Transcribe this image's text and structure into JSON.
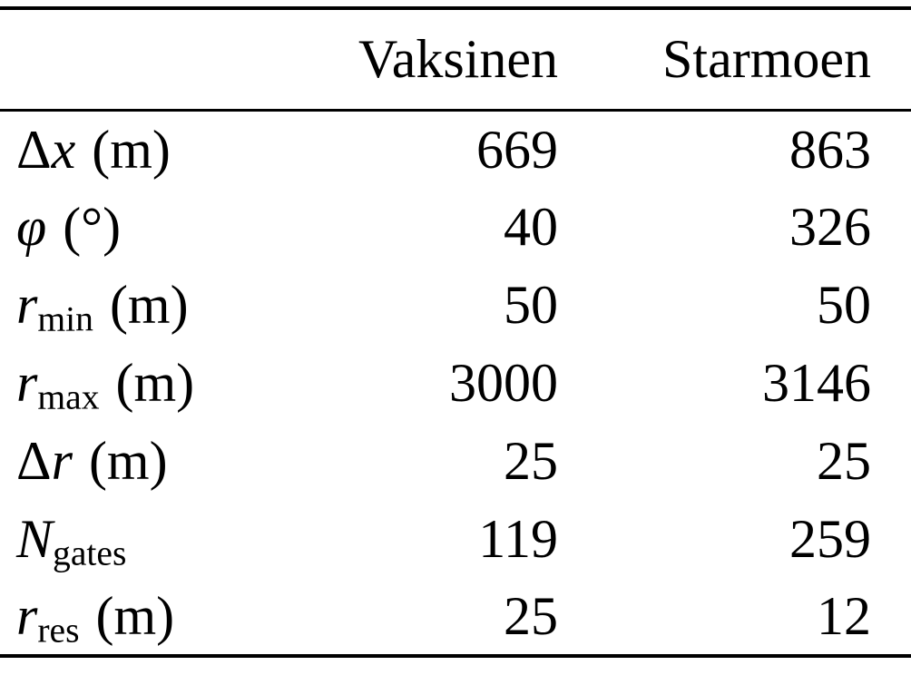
{
  "table": {
    "columns": [
      "Vaksinen",
      "Starmoen"
    ],
    "rows": [
      {
        "pre": "Δ",
        "sym": "x",
        "sub": "",
        "unit": "(m)",
        "vaksinen": "669",
        "starmoen": "863"
      },
      {
        "pre": "",
        "sym": "φ",
        "sub": "",
        "unit": "(°)",
        "vaksinen": "40",
        "starmoen": "326"
      },
      {
        "pre": "",
        "sym": "r",
        "sub": "min",
        "unit": "(m)",
        "vaksinen": "50",
        "starmoen": "50"
      },
      {
        "pre": "",
        "sym": "r",
        "sub": "max",
        "unit": "(m)",
        "vaksinen": "3000",
        "starmoen": "3146"
      },
      {
        "pre": "Δ",
        "sym": "r",
        "sub": "",
        "unit": "(m)",
        "vaksinen": "25",
        "starmoen": "25"
      },
      {
        "pre": "",
        "sym": "N",
        "sub": "gates",
        "unit": "",
        "vaksinen": "119",
        "starmoen": "259"
      },
      {
        "pre": "",
        "sym": "r",
        "sub": "res",
        "unit": "(m)",
        "vaksinen": "25",
        "starmoen": "12"
      }
    ]
  }
}
